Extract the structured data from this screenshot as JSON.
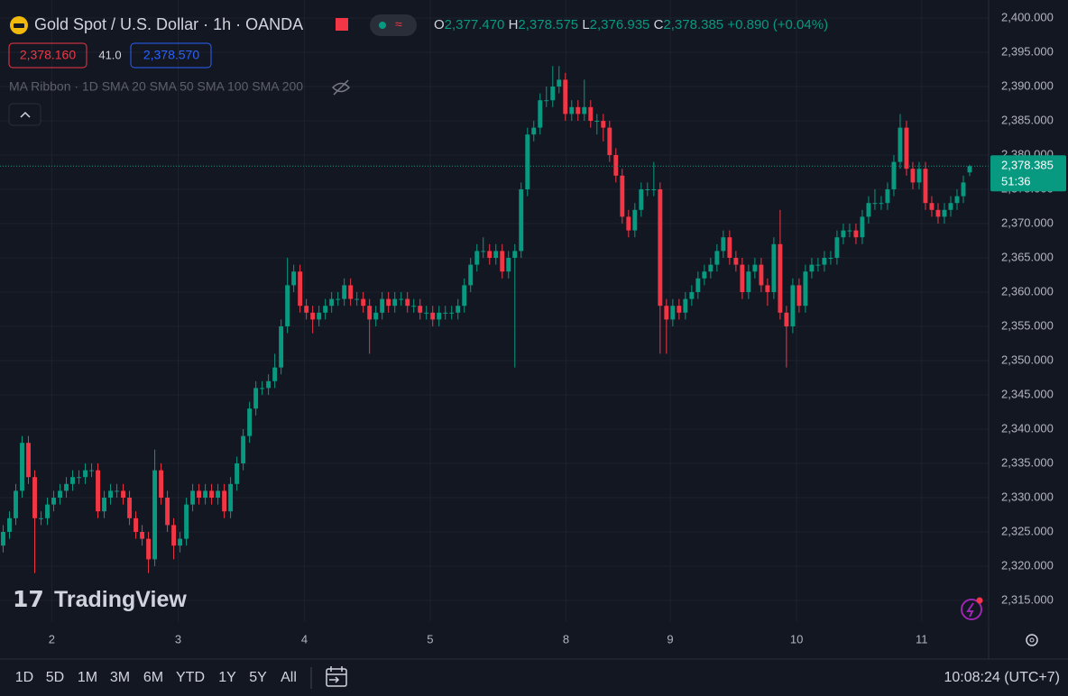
{
  "header": {
    "symbol": "Gold Spot / U.S. Dollar · 1h · OANDA",
    "ohlc": {
      "o_label": "O",
      "o": "2,377.470",
      "h_label": "H",
      "h": "2,378.575",
      "l_label": "L",
      "l": "2,376.935",
      "c_label": "C",
      "c": "2,378.385",
      "change": "+0.890 (+0.04%)"
    },
    "bid": "2,378.160",
    "spread": "41.0",
    "ask": "2,378.570",
    "indicator": "MA Ribbon · 1D SMA 20 SMA 50 SMA 100 SMA 200"
  },
  "watermark": "TradingView",
  "toolbar": {
    "ranges": [
      "1D",
      "5D",
      "1M",
      "3M",
      "6M",
      "YTD",
      "1Y",
      "5Y",
      "All"
    ],
    "clock": "10:08:24 (UTC+7)"
  },
  "chart_data": {
    "type": "candlestick",
    "up_color": "#089981",
    "down_color": "#f23645",
    "grid": true,
    "last_price_label": "2,378.385",
    "countdown": "51:36",
    "xlim": [
      -0.5,
      156
    ],
    "xticks": [
      {
        "value": 7.7,
        "label": "2"
      },
      {
        "value": 27.7,
        "label": "3"
      },
      {
        "value": 47.7,
        "label": "4"
      },
      {
        "value": 67.6,
        "label": "5"
      },
      {
        "value": 89.1,
        "label": "8"
      },
      {
        "value": 105.6,
        "label": "9"
      },
      {
        "value": 125.6,
        "label": "10"
      },
      {
        "value": 145.4,
        "label": "11"
      }
    ],
    "ylim": [
      2315,
      2400
    ],
    "yticks": [
      {
        "value": 2315,
        "label": "2,315.000"
      },
      {
        "value": 2320,
        "label": "2,320.000"
      },
      {
        "value": 2325,
        "label": "2,325.000"
      },
      {
        "value": 2330,
        "label": "2,330.000"
      },
      {
        "value": 2335,
        "label": "2,335.000"
      },
      {
        "value": 2340,
        "label": "2,340.000"
      },
      {
        "value": 2345,
        "label": "2,345.000"
      },
      {
        "value": 2350,
        "label": "2,350.000"
      },
      {
        "value": 2355,
        "label": "2,355.000"
      },
      {
        "value": 2360,
        "label": "2,360.000"
      },
      {
        "value": 2365,
        "label": "2,365.000"
      },
      {
        "value": 2370,
        "label": "2,370.000"
      },
      {
        "value": 2375,
        "label": "2,375.000"
      },
      {
        "value": 2380,
        "label": "2,380.000"
      },
      {
        "value": 2385,
        "label": "2,385.000"
      },
      {
        "value": 2390,
        "label": "2,390.000"
      },
      {
        "value": 2395,
        "label": "2,395.000"
      },
      {
        "value": 2400,
        "label": "2,400.000"
      }
    ],
    "open": [
      2323,
      2325,
      2327,
      2331,
      2338,
      2333,
      2327,
      2327,
      2329,
      2330,
      2331,
      2332,
      2333,
      2333,
      2334,
      2334,
      2328,
      2330,
      2331,
      2331,
      2330,
      2327,
      2325,
      2324,
      2321,
      2334,
      2330,
      2326,
      2323,
      2324,
      2329,
      2331,
      2330,
      2331,
      2330,
      2331,
      2328,
      2332,
      2335,
      2339,
      2343,
      2346,
      2346,
      2347,
      2349,
      2355,
      2361,
      2363,
      2358,
      2357,
      2356,
      2357,
      2358,
      2359,
      2359,
      2361,
      2359,
      2359,
      2358,
      2356,
      2357,
      2359,
      2358,
      2359,
      2359,
      2358,
      2358,
      2357,
      2357,
      2356,
      2357,
      2357,
      2357,
      2358,
      2361,
      2364,
      2366,
      2366,
      2365,
      2366,
      2363,
      2365,
      2366,
      2375,
      2383,
      2384,
      2388,
      2388,
      2390,
      2391,
      2386,
      2387,
      2386,
      2387,
      2385,
      2385,
      2384,
      2380,
      2377,
      2371,
      2369,
      2372,
      2375,
      2375,
      2375,
      2358,
      2356,
      2358,
      2357,
      2359,
      2360,
      2362,
      2363,
      2364,
      2366,
      2368,
      2365,
      2364,
      2360,
      2363,
      2364,
      2361,
      2360,
      2367,
      2357,
      2355,
      2361,
      2358,
      2363,
      2364,
      2364,
      2365,
      2365,
      2368,
      2369,
      2369,
      2368,
      2371,
      2373,
      2373,
      2373,
      2375,
      2379,
      2384,
      2378,
      2376,
      2378,
      2373,
      2372,
      2371,
      2372,
      2373,
      2374,
      2377.47
    ],
    "high": [
      2326,
      2328,
      2332,
      2339,
      2339,
      2334,
      2328,
      2330,
      2331,
      2332,
      2333,
      2334,
      2334,
      2335,
      2335,
      2335,
      2331,
      2332,
      2332,
      2332,
      2331,
      2328,
      2326,
      2325,
      2337,
      2335,
      2331,
      2327,
      2325,
      2330,
      2332,
      2332,
      2332,
      2332,
      2332,
      2332,
      2333,
      2336,
      2340,
      2344,
      2347,
      2347,
      2348,
      2351,
      2356,
      2365,
      2364,
      2364,
      2359,
      2358,
      2358,
      2359,
      2360,
      2360,
      2362,
      2362,
      2360,
      2360,
      2359,
      2358,
      2360,
      2360,
      2360,
      2360,
      2360,
      2359,
      2359,
      2358,
      2358,
      2358,
      2358,
      2358,
      2359,
      2362,
      2365,
      2367,
      2368,
      2367,
      2367,
      2367,
      2366,
      2367,
      2376,
      2384,
      2385,
      2389,
      2390,
      2393,
      2393,
      2392,
      2388,
      2388,
      2391,
      2388,
      2386,
      2386,
      2385,
      2381,
      2378,
      2372,
      2373,
      2376,
      2376,
      2379,
      2376,
      2359,
      2359,
      2359,
      2360,
      2361,
      2363,
      2364,
      2365,
      2367,
      2369,
      2369,
      2366,
      2365,
      2364,
      2365,
      2365,
      2362,
      2368,
      2372,
      2358,
      2362,
      2362,
      2364,
      2365,
      2365,
      2366,
      2366,
      2369,
      2370,
      2370,
      2370,
      2372,
      2374,
      2375,
      2374,
      2376,
      2380,
      2386,
      2385,
      2379,
      2379,
      2379,
      2374,
      2373,
      2373,
      2374,
      2375,
      2377,
      2378.575
    ],
    "low": [
      2322,
      2324,
      2326,
      2330,
      2332,
      2319,
      2326,
      2326,
      2328,
      2329,
      2330,
      2331,
      2332,
      2332,
      2333,
      2327,
      2327,
      2329,
      2330,
      2329,
      2326,
      2324,
      2323,
      2319,
      2320,
      2329,
      2325,
      2321,
      2322,
      2323,
      2328,
      2329,
      2329,
      2329,
      2329,
      2327,
      2327,
      2331,
      2334,
      2338,
      2342,
      2345,
      2345,
      2346,
      2348,
      2354,
      2360,
      2357,
      2356,
      2354,
      2355,
      2356,
      2357,
      2358,
      2358,
      2358,
      2358,
      2357,
      2351,
      2355,
      2356,
      2357,
      2357,
      2358,
      2357,
      2357,
      2356,
      2356,
      2355,
      2355,
      2356,
      2356,
      2356,
      2357,
      2360,
      2363,
      2365,
      2364,
      2364,
      2362,
      2362,
      2349,
      2365,
      2374,
      2382,
      2383,
      2387,
      2387,
      2389,
      2385,
      2385,
      2385,
      2385,
      2384,
      2383,
      2382,
      2379,
      2376,
      2370,
      2368,
      2368,
      2371,
      2374,
      2374,
      2351,
      2351,
      2355,
      2356,
      2356,
      2358,
      2359,
      2361,
      2362,
      2363,
      2365,
      2364,
      2363,
      2359,
      2359,
      2362,
      2360,
      2358,
      2359,
      2356,
      2349,
      2354,
      2357,
      2357,
      2362,
      2363,
      2363,
      2364,
      2364,
      2367,
      2368,
      2367,
      2367,
      2370,
      2372,
      2372,
      2372,
      2374,
      2378,
      2377,
      2375,
      2375,
      2372,
      2371,
      2370,
      2370,
      2371,
      2372,
      2373,
      2376.935
    ],
    "close": [
      2325,
      2327,
      2331,
      2338,
      2333,
      2327,
      2327,
      2329,
      2330,
      2331,
      2332,
      2333,
      2333,
      2334,
      2334,
      2328,
      2330,
      2331,
      2331,
      2330,
      2327,
      2325,
      2324,
      2321,
      2334,
      2330,
      2326,
      2323,
      2324,
      2329,
      2331,
      2330,
      2331,
      2330,
      2331,
      2328,
      2332,
      2335,
      2339,
      2343,
      2346,
      2346,
      2347,
      2349,
      2355,
      2361,
      2363,
      2358,
      2357,
      2356,
      2357,
      2358,
      2359,
      2359,
      2361,
      2359,
      2359,
      2358,
      2356,
      2357,
      2359,
      2358,
      2359,
      2359,
      2358,
      2358,
      2357,
      2357,
      2356,
      2357,
      2357,
      2357,
      2358,
      2361,
      2364,
      2366,
      2366,
      2365,
      2366,
      2363,
      2365,
      2366,
      2375,
      2383,
      2384,
      2388,
      2388,
      2390,
      2391,
      2386,
      2387,
      2386,
      2387,
      2385,
      2385,
      2384,
      2380,
      2377,
      2371,
      2369,
      2372,
      2375,
      2375,
      2375,
      2358,
      2356,
      2358,
      2357,
      2359,
      2360,
      2362,
      2363,
      2364,
      2366,
      2368,
      2365,
      2364,
      2360,
      2363,
      2364,
      2361,
      2360,
      2367,
      2357,
      2355,
      2361,
      2358,
      2363,
      2364,
      2364,
      2365,
      2365,
      2368,
      2369,
      2369,
      2368,
      2371,
      2373,
      2373,
      2373,
      2375,
      2379,
      2384,
      2378,
      2376,
      2378,
      2373,
      2372,
      2371,
      2372,
      2373,
      2374,
      2376,
      2378.385
    ]
  }
}
